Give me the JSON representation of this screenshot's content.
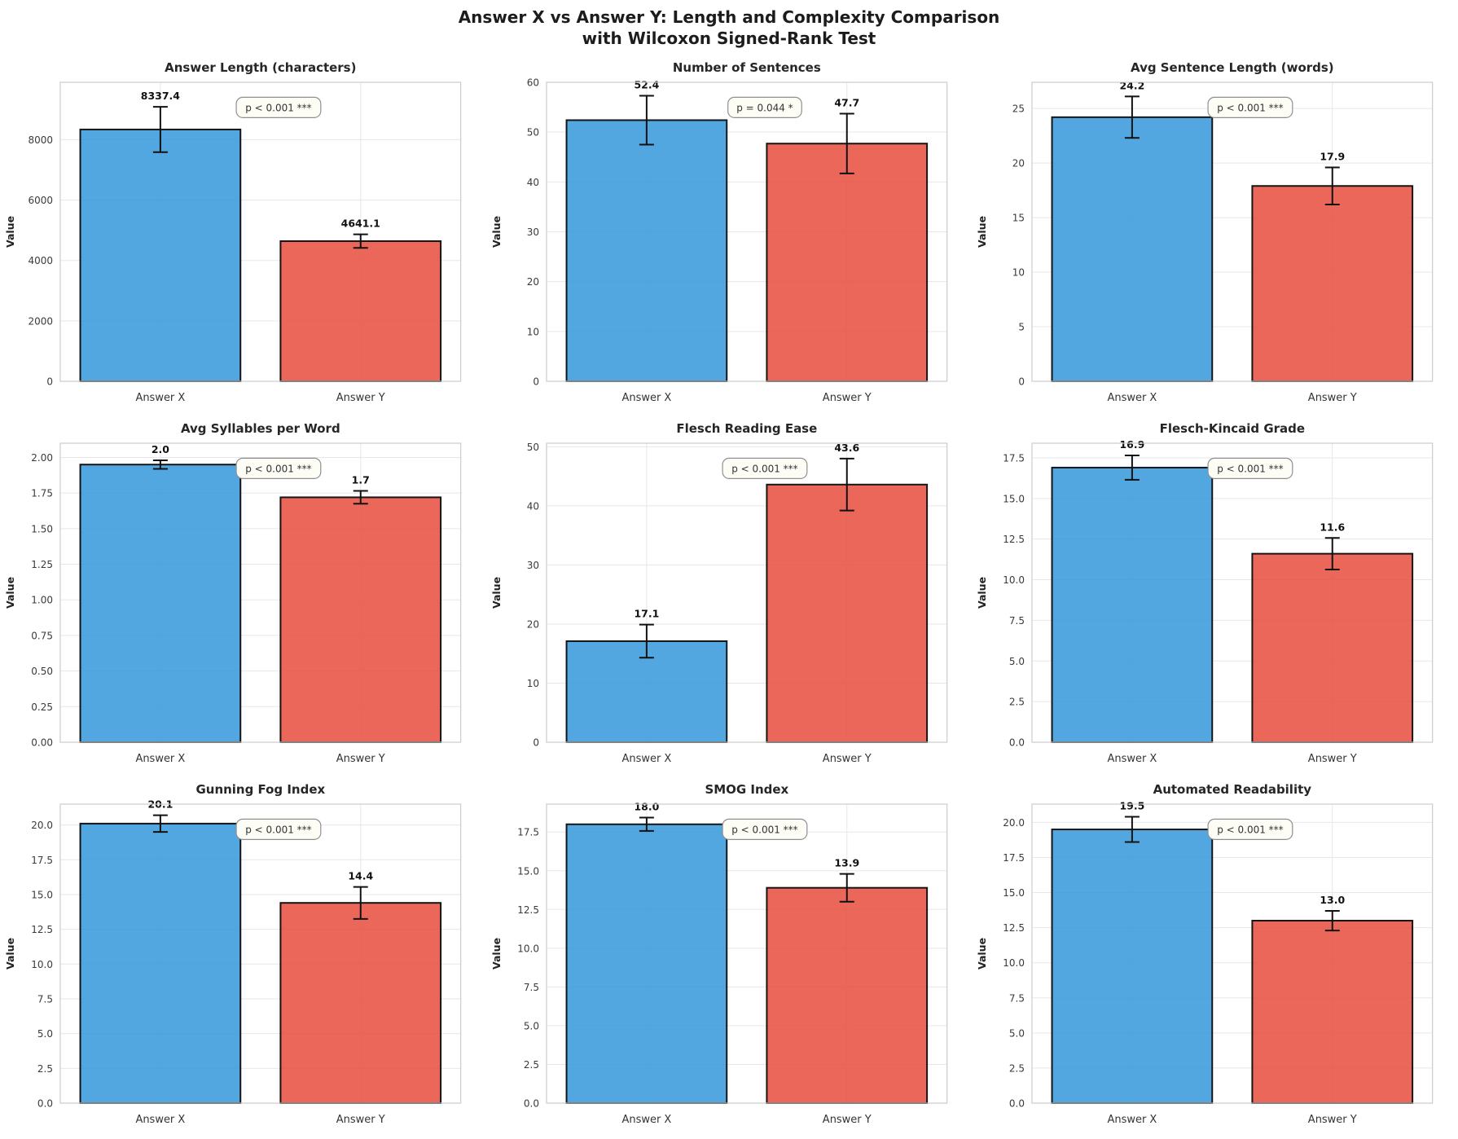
{
  "figure_title": {
    "line1": "Answer X vs Answer Y: Length and Complexity Comparison",
    "line2": "with Wilcoxon Signed-Rank Test"
  },
  "colors": {
    "answer_x_fill": "#3498db",
    "answer_y_fill": "#e74c3c",
    "bar_fill_opacity": 0.85,
    "bar_edge": "#151515",
    "error_bar": "#111111",
    "grid": "#e7e7e7",
    "spine": "#cccccc",
    "title_text": "#262626",
    "tick_text": "#3a3a3a",
    "value_label_text": "#111111",
    "pbox_bg": "#fdfdf6",
    "pbox_border": "#8f8f8f",
    "pbox_text": "#333333"
  },
  "chart_data": [
    {
      "type": "bar",
      "title": "Answer Length (characters)",
      "categories": [
        "Answer X",
        "Answer Y"
      ],
      "values": [
        8337.4,
        4641.1
      ],
      "errors": [
        750,
        225
      ],
      "bar_labels": [
        "8337.4",
        "4641.1"
      ],
      "p_label": "p < 0.001 ***",
      "ylabel": "Value",
      "yticks": [
        0,
        2000,
        4000,
        6000,
        8000
      ],
      "ytick_labels": [
        "0",
        "2000",
        "4000",
        "6000",
        "8000"
      ],
      "ylim": [
        0,
        9900
      ],
      "grid": true
    },
    {
      "type": "bar",
      "title": "Number of Sentences",
      "categories": [
        "Answer X",
        "Answer Y"
      ],
      "values": [
        52.4,
        47.7
      ],
      "errors": [
        4.9,
        6.0
      ],
      "bar_labels": [
        "52.4",
        "47.7"
      ],
      "p_label": "p = 0.044 *",
      "ylabel": "Value",
      "yticks": [
        0,
        10,
        20,
        30,
        40,
        50,
        60
      ],
      "ytick_labels": [
        "0",
        "10",
        "20",
        "30",
        "40",
        "50",
        "60"
      ],
      "ylim": [
        0,
        60
      ],
      "grid": true
    },
    {
      "type": "bar",
      "title": "Avg Sentence Length (words)",
      "categories": [
        "Answer X",
        "Answer Y"
      ],
      "values": [
        24.2,
        17.9
      ],
      "errors": [
        1.9,
        1.7
      ],
      "bar_labels": [
        "24.2",
        "17.9"
      ],
      "p_label": "p < 0.001 ***",
      "ylabel": "Value",
      "yticks": [
        0,
        5,
        10,
        15,
        20,
        25
      ],
      "ytick_labels": [
        "0",
        "5",
        "10",
        "15",
        "20",
        "25"
      ],
      "ylim": [
        0,
        27.4
      ],
      "grid": true
    },
    {
      "type": "bar",
      "title": "Avg Syllables per Word",
      "categories": [
        "Answer X",
        "Answer Y"
      ],
      "values": [
        1.95,
        1.72
      ],
      "errors": [
        0.03,
        0.045
      ],
      "bar_labels": [
        "2.0",
        "1.7"
      ],
      "p_label": "p < 0.001 ***",
      "ylabel": "Value",
      "yticks": [
        0,
        0.25,
        0.5,
        0.75,
        1.0,
        1.25,
        1.5,
        1.75,
        2.0
      ],
      "ytick_labels": [
        "0.00",
        "0.25",
        "0.50",
        "0.75",
        "1.00",
        "1.25",
        "1.50",
        "1.75",
        "2.00"
      ],
      "ylim": [
        0,
        2.1
      ],
      "grid": true
    },
    {
      "type": "bar",
      "title": "Flesch Reading Ease",
      "categories": [
        "Answer X",
        "Answer Y"
      ],
      "values": [
        17.1,
        43.6
      ],
      "errors": [
        2.8,
        4.4
      ],
      "bar_labels": [
        "17.1",
        "43.6"
      ],
      "p_label": "p < 0.001 ***",
      "ylabel": "Value",
      "yticks": [
        0,
        10,
        20,
        30,
        40,
        50
      ],
      "ytick_labels": [
        "0",
        "10",
        "20",
        "30",
        "40",
        "50"
      ],
      "ylim": [
        0,
        50.6
      ],
      "grid": true
    },
    {
      "type": "bar",
      "title": "Flesch-Kincaid Grade",
      "categories": [
        "Answer X",
        "Answer Y"
      ],
      "values": [
        16.9,
        11.6
      ],
      "errors": [
        0.75,
        0.97
      ],
      "bar_labels": [
        "16.9",
        "11.6"
      ],
      "p_label": "p < 0.001 ***",
      "ylabel": "Value",
      "yticks": [
        0,
        2.5,
        5,
        7.5,
        10,
        12.5,
        15,
        17.5
      ],
      "ytick_labels": [
        "0.0",
        "2.5",
        "5.0",
        "7.5",
        "10.0",
        "12.5",
        "15.0",
        "17.5"
      ],
      "ylim": [
        0,
        18.4
      ],
      "grid": true
    },
    {
      "type": "bar",
      "title": "Gunning Fog Index",
      "categories": [
        "Answer X",
        "Answer Y"
      ],
      "values": [
        20.1,
        14.4
      ],
      "errors": [
        0.6,
        1.15
      ],
      "bar_labels": [
        "20.1",
        "14.4"
      ],
      "p_label": "p < 0.001 ***",
      "ylabel": "Value",
      "yticks": [
        0,
        2.5,
        5,
        7.5,
        10,
        12.5,
        15,
        17.5,
        20
      ],
      "ytick_labels": [
        "0.0",
        "2.5",
        "5.0",
        "7.5",
        "10.0",
        "12.5",
        "15.0",
        "17.5",
        "20.0"
      ],
      "ylim": [
        0,
        21.5
      ],
      "grid": true
    },
    {
      "type": "bar",
      "title": "SMOG Index",
      "categories": [
        "Answer X",
        "Answer Y"
      ],
      "values": [
        18.0,
        13.9
      ],
      "errors": [
        0.43,
        0.9
      ],
      "bar_labels": [
        "18.0",
        "13.9"
      ],
      "p_label": "p < 0.001 ***",
      "ylabel": "Value",
      "yticks": [
        0,
        2.5,
        5,
        7.5,
        10,
        12.5,
        15,
        17.5
      ],
      "ytick_labels": [
        "0.0",
        "2.5",
        "5.0",
        "7.5",
        "10.0",
        "12.5",
        "15.0",
        "17.5"
      ],
      "ylim": [
        0,
        19.3
      ],
      "grid": true
    },
    {
      "type": "bar",
      "title": "Automated Readability",
      "categories": [
        "Answer X",
        "Answer Y"
      ],
      "values": [
        19.5,
        13.0
      ],
      "errors": [
        0.9,
        0.7
      ],
      "bar_labels": [
        "19.5",
        "13.0"
      ],
      "p_label": "p < 0.001 ***",
      "ylabel": "Value",
      "yticks": [
        0,
        2.5,
        5,
        7.5,
        10,
        12.5,
        15,
        17.5,
        20
      ],
      "ytick_labels": [
        "0.0",
        "2.5",
        "5.0",
        "7.5",
        "10.0",
        "12.5",
        "15.0",
        "17.5",
        "20.0"
      ],
      "ylim": [
        0,
        21.3
      ],
      "grid": true
    }
  ]
}
